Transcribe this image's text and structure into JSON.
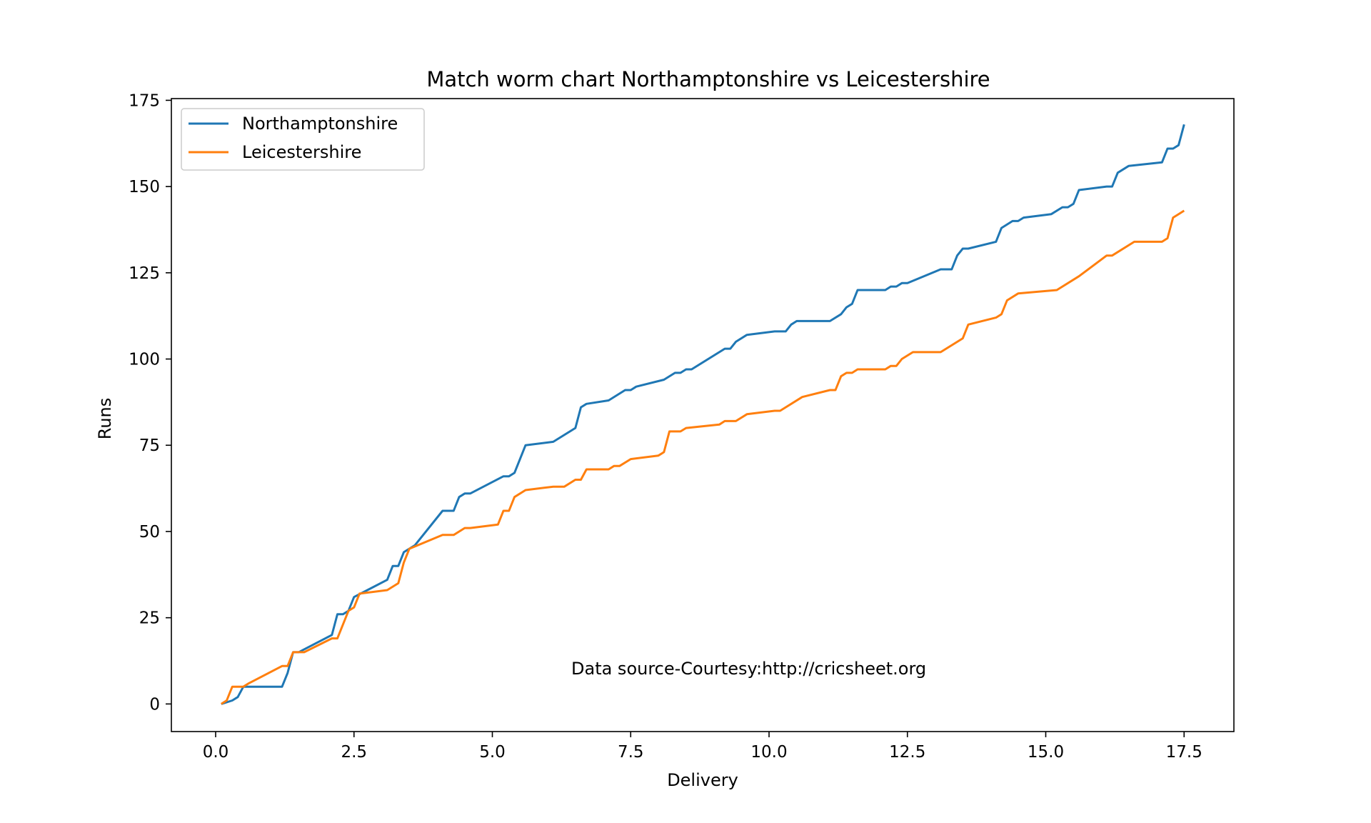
{
  "chart_data": {
    "type": "line",
    "title": "Match worm chart Northamptonshire vs Leicestershire",
    "xlabel": "Delivery",
    "ylabel": "Runs",
    "xlim": [
      -0.8,
      18.4
    ],
    "ylim": [
      -8,
      175.5
    ],
    "xticks": [
      0.0,
      2.5,
      5.0,
      7.5,
      10.0,
      12.5,
      15.0,
      17.5
    ],
    "xtick_labels": [
      "0.0",
      "2.5",
      "5.0",
      "7.5",
      "10.0",
      "12.5",
      "15.0",
      "17.5"
    ],
    "yticks": [
      0,
      25,
      50,
      75,
      100,
      125,
      150,
      175
    ],
    "ytick_labels": [
      "0",
      "25",
      "50",
      "75",
      "100",
      "125",
      "150",
      "175"
    ],
    "grid": false,
    "legend_position": "top-left",
    "annotation": "Data source-Courtesy:http://cricsheet.org",
    "series": [
      {
        "name": "Northamptonshire",
        "color": "#1f77b4",
        "points": [
          [
            0.1,
            0
          ],
          [
            0.3,
            1
          ],
          [
            0.4,
            2
          ],
          [
            0.5,
            5
          ],
          [
            1.2,
            5
          ],
          [
            1.3,
            9
          ],
          [
            1.4,
            15
          ],
          [
            1.5,
            15
          ],
          [
            2.1,
            20
          ],
          [
            2.2,
            26
          ],
          [
            2.3,
            26
          ],
          [
            2.4,
            27
          ],
          [
            2.5,
            31
          ],
          [
            3.1,
            36
          ],
          [
            3.2,
            40
          ],
          [
            3.3,
            40
          ],
          [
            3.4,
            44
          ],
          [
            3.6,
            46
          ],
          [
            4.1,
            56
          ],
          [
            4.3,
            56
          ],
          [
            4.4,
            60
          ],
          [
            4.5,
            61
          ],
          [
            4.6,
            61
          ],
          [
            5.2,
            66
          ],
          [
            5.3,
            66
          ],
          [
            5.4,
            67
          ],
          [
            5.6,
            75
          ],
          [
            6.1,
            76
          ],
          [
            6.5,
            80
          ],
          [
            6.6,
            86
          ],
          [
            6.7,
            87
          ],
          [
            7.1,
            88
          ],
          [
            7.4,
            91
          ],
          [
            7.5,
            91
          ],
          [
            7.6,
            92
          ],
          [
            8.1,
            94
          ],
          [
            8.3,
            96
          ],
          [
            8.4,
            96
          ],
          [
            8.5,
            97
          ],
          [
            8.6,
            97
          ],
          [
            9.2,
            103
          ],
          [
            9.3,
            103
          ],
          [
            9.4,
            105
          ],
          [
            9.6,
            107
          ],
          [
            10.1,
            108
          ],
          [
            10.3,
            108
          ],
          [
            10.4,
            110
          ],
          [
            10.5,
            111
          ],
          [
            11.1,
            111
          ],
          [
            11.3,
            113
          ],
          [
            11.4,
            115
          ],
          [
            11.5,
            116
          ],
          [
            11.6,
            120
          ],
          [
            12.1,
            120
          ],
          [
            12.2,
            121
          ],
          [
            12.3,
            121
          ],
          [
            12.4,
            122
          ],
          [
            12.5,
            122
          ],
          [
            13.1,
            126
          ],
          [
            13.3,
            126
          ],
          [
            13.4,
            130
          ],
          [
            13.5,
            132
          ],
          [
            13.6,
            132
          ],
          [
            14.1,
            134
          ],
          [
            14.2,
            138
          ],
          [
            14.4,
            140
          ],
          [
            14.5,
            140
          ],
          [
            14.6,
            141
          ],
          [
            15.1,
            142
          ],
          [
            15.3,
            144
          ],
          [
            15.4,
            144
          ],
          [
            15.5,
            145
          ],
          [
            15.6,
            149
          ],
          [
            16.1,
            150
          ],
          [
            16.2,
            150
          ],
          [
            16.3,
            154
          ],
          [
            16.5,
            156
          ],
          [
            17.1,
            157
          ],
          [
            17.2,
            161
          ],
          [
            17.3,
            161
          ],
          [
            17.4,
            162
          ],
          [
            17.5,
            168
          ]
        ]
      },
      {
        "name": "Leicestershire",
        "color": "#ff7f0e",
        "points": [
          [
            0.1,
            0
          ],
          [
            0.2,
            1
          ],
          [
            0.3,
            5
          ],
          [
            0.5,
            5
          ],
          [
            0.6,
            6
          ],
          [
            1.2,
            11
          ],
          [
            1.3,
            11
          ],
          [
            1.4,
            15
          ],
          [
            1.6,
            15
          ],
          [
            2.1,
            19
          ],
          [
            2.2,
            19
          ],
          [
            2.4,
            27
          ],
          [
            2.5,
            28
          ],
          [
            2.6,
            32
          ],
          [
            3.1,
            33
          ],
          [
            3.3,
            35
          ],
          [
            3.4,
            41
          ],
          [
            3.5,
            45
          ],
          [
            4.1,
            49
          ],
          [
            4.3,
            49
          ],
          [
            4.5,
            51
          ],
          [
            4.6,
            51
          ],
          [
            5.1,
            52
          ],
          [
            5.2,
            56
          ],
          [
            5.3,
            56
          ],
          [
            5.4,
            60
          ],
          [
            5.6,
            62
          ],
          [
            6.1,
            63
          ],
          [
            6.3,
            63
          ],
          [
            6.5,
            65
          ],
          [
            6.6,
            65
          ],
          [
            6.7,
            68
          ],
          [
            7.1,
            68
          ],
          [
            7.2,
            69
          ],
          [
            7.3,
            69
          ],
          [
            7.5,
            71
          ],
          [
            8.0,
            72
          ],
          [
            8.1,
            73
          ],
          [
            8.2,
            79
          ],
          [
            8.4,
            79
          ],
          [
            8.5,
            80
          ],
          [
            9.1,
            81
          ],
          [
            9.2,
            82
          ],
          [
            9.4,
            82
          ],
          [
            9.6,
            84
          ],
          [
            10.1,
            85
          ],
          [
            10.2,
            85
          ],
          [
            10.6,
            89
          ],
          [
            11.1,
            91
          ],
          [
            11.2,
            91
          ],
          [
            11.3,
            95
          ],
          [
            11.4,
            96
          ],
          [
            11.5,
            96
          ],
          [
            11.6,
            97
          ],
          [
            12.1,
            97
          ],
          [
            12.2,
            98
          ],
          [
            12.3,
            98
          ],
          [
            12.4,
            100
          ],
          [
            12.6,
            102
          ],
          [
            13.1,
            102
          ],
          [
            13.5,
            106
          ],
          [
            13.6,
            110
          ],
          [
            14.1,
            112
          ],
          [
            14.2,
            113
          ],
          [
            14.3,
            117
          ],
          [
            14.5,
            119
          ],
          [
            15.2,
            120
          ],
          [
            15.6,
            124
          ],
          [
            16.1,
            130
          ],
          [
            16.2,
            130
          ],
          [
            16.6,
            134
          ],
          [
            17.1,
            134
          ],
          [
            17.2,
            135
          ],
          [
            17.3,
            141
          ],
          [
            17.5,
            143
          ]
        ]
      }
    ]
  }
}
